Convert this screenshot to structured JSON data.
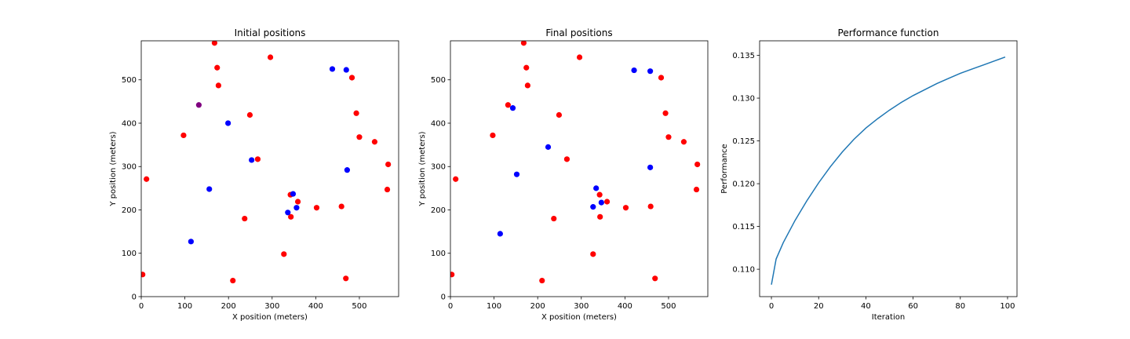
{
  "chart_data": [
    {
      "type": "scatter",
      "title": "Initial positions",
      "xlabel": "X position (meters)",
      "ylabel": "Y position (meters)",
      "xlim": [
        0,
        590
      ],
      "ylim": [
        0,
        590
      ],
      "xticks": [
        0,
        100,
        200,
        300,
        400,
        500
      ],
      "yticks": [
        0,
        100,
        200,
        300,
        400,
        500
      ],
      "series": [
        {
          "color": "#ff0000",
          "points": [
            [
              168,
              585
            ],
            [
              174,
              528
            ],
            [
              177,
              487
            ],
            [
              296,
              552
            ],
            [
              483,
              505
            ],
            [
              493,
              423
            ],
            [
              500,
              368
            ],
            [
              535,
              357
            ],
            [
              566,
              305
            ],
            [
              564,
              247
            ],
            [
              459,
              208
            ],
            [
              402,
              205
            ],
            [
              359,
              219
            ],
            [
              342,
              235
            ],
            [
              343,
              184
            ],
            [
              327,
              98
            ],
            [
              237,
              180
            ],
            [
              267,
              317
            ],
            [
              249,
              419
            ],
            [
              97,
              372
            ],
            [
              12,
              271
            ],
            [
              3,
              51
            ],
            [
              210,
              37
            ],
            [
              469,
              42
            ]
          ]
        },
        {
          "color": "#0000ff",
          "points": [
            [
              438,
              525
            ],
            [
              470,
              523
            ],
            [
              199,
              400
            ],
            [
              253,
              315
            ],
            [
              472,
              292
            ],
            [
              156,
              248
            ],
            [
              348,
              237
            ],
            [
              356,
              205
            ],
            [
              336,
              194
            ],
            [
              114,
              127
            ]
          ]
        },
        {
          "color": "#800080",
          "points": [
            [
              132,
              442
            ]
          ]
        }
      ]
    },
    {
      "type": "scatter",
      "title": "Final positions",
      "xlabel": "X position (meters)",
      "ylabel": "Y position (meters)",
      "xlim": [
        0,
        590
      ],
      "ylim": [
        0,
        590
      ],
      "xticks": [
        0,
        100,
        200,
        300,
        400,
        500
      ],
      "yticks": [
        0,
        100,
        200,
        300,
        400,
        500
      ],
      "series": [
        {
          "color": "#ff0000",
          "points": [
            [
              168,
              585
            ],
            [
              174,
              528
            ],
            [
              177,
              487
            ],
            [
              296,
              552
            ],
            [
              483,
              505
            ],
            [
              493,
              423
            ],
            [
              500,
              368
            ],
            [
              535,
              357
            ],
            [
              566,
              305
            ],
            [
              564,
              247
            ],
            [
              459,
              208
            ],
            [
              402,
              205
            ],
            [
              359,
              219
            ],
            [
              342,
              235
            ],
            [
              343,
              184
            ],
            [
              327,
              98
            ],
            [
              237,
              180
            ],
            [
              267,
              317
            ],
            [
              249,
              419
            ],
            [
              97,
              372
            ],
            [
              12,
              271
            ],
            [
              3,
              51
            ],
            [
              210,
              37
            ],
            [
              469,
              42
            ],
            [
              132,
              442
            ]
          ]
        },
        {
          "color": "#0000ff",
          "points": [
            [
              421,
              522
            ],
            [
              458,
              520
            ],
            [
              143,
              435
            ],
            [
              224,
              345
            ],
            [
              458,
              298
            ],
            [
              152,
              282
            ],
            [
              334,
              250
            ],
            [
              346,
              217
            ],
            [
              327,
              207
            ],
            [
              114,
              145
            ]
          ]
        }
      ]
    },
    {
      "type": "line",
      "title": "Performance function",
      "xlabel": "Iteration",
      "ylabel": "Performance",
      "xlim": [
        -5,
        104
      ],
      "ylim": [
        0.1068,
        0.1367
      ],
      "xticks": [
        0,
        20,
        40,
        60,
        80,
        100
      ],
      "yticks": [
        0.11,
        0.115,
        0.12,
        0.125,
        0.13,
        0.135
      ],
      "ytick_labels": [
        "0.110",
        "0.115",
        "0.120",
        "0.125",
        "0.130",
        "0.135"
      ],
      "series": [
        {
          "color": "#1f77b4",
          "x": [
            0,
            2,
            5,
            10,
            15,
            20,
            25,
            30,
            35,
            40,
            45,
            50,
            55,
            60,
            65,
            70,
            75,
            80,
            85,
            90,
            95,
            99
          ],
          "y": [
            0.1082,
            0.1112,
            0.1131,
            0.1157,
            0.118,
            0.1201,
            0.122,
            0.1237,
            0.1252,
            0.1265,
            0.1276,
            0.1286,
            0.1295,
            0.1303,
            0.131,
            0.1317,
            0.1323,
            0.1329,
            0.1334,
            0.1339,
            0.1344,
            0.1348
          ]
        }
      ]
    }
  ]
}
